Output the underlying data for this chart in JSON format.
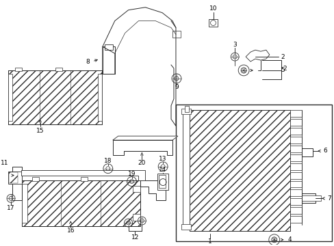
{
  "bg_color": "#ffffff",
  "line_color": "#2a2a2a",
  "figsize": [
    4.89,
    3.6
  ],
  "dpi": 100,
  "lw": 0.7,
  "fs": 6.5
}
